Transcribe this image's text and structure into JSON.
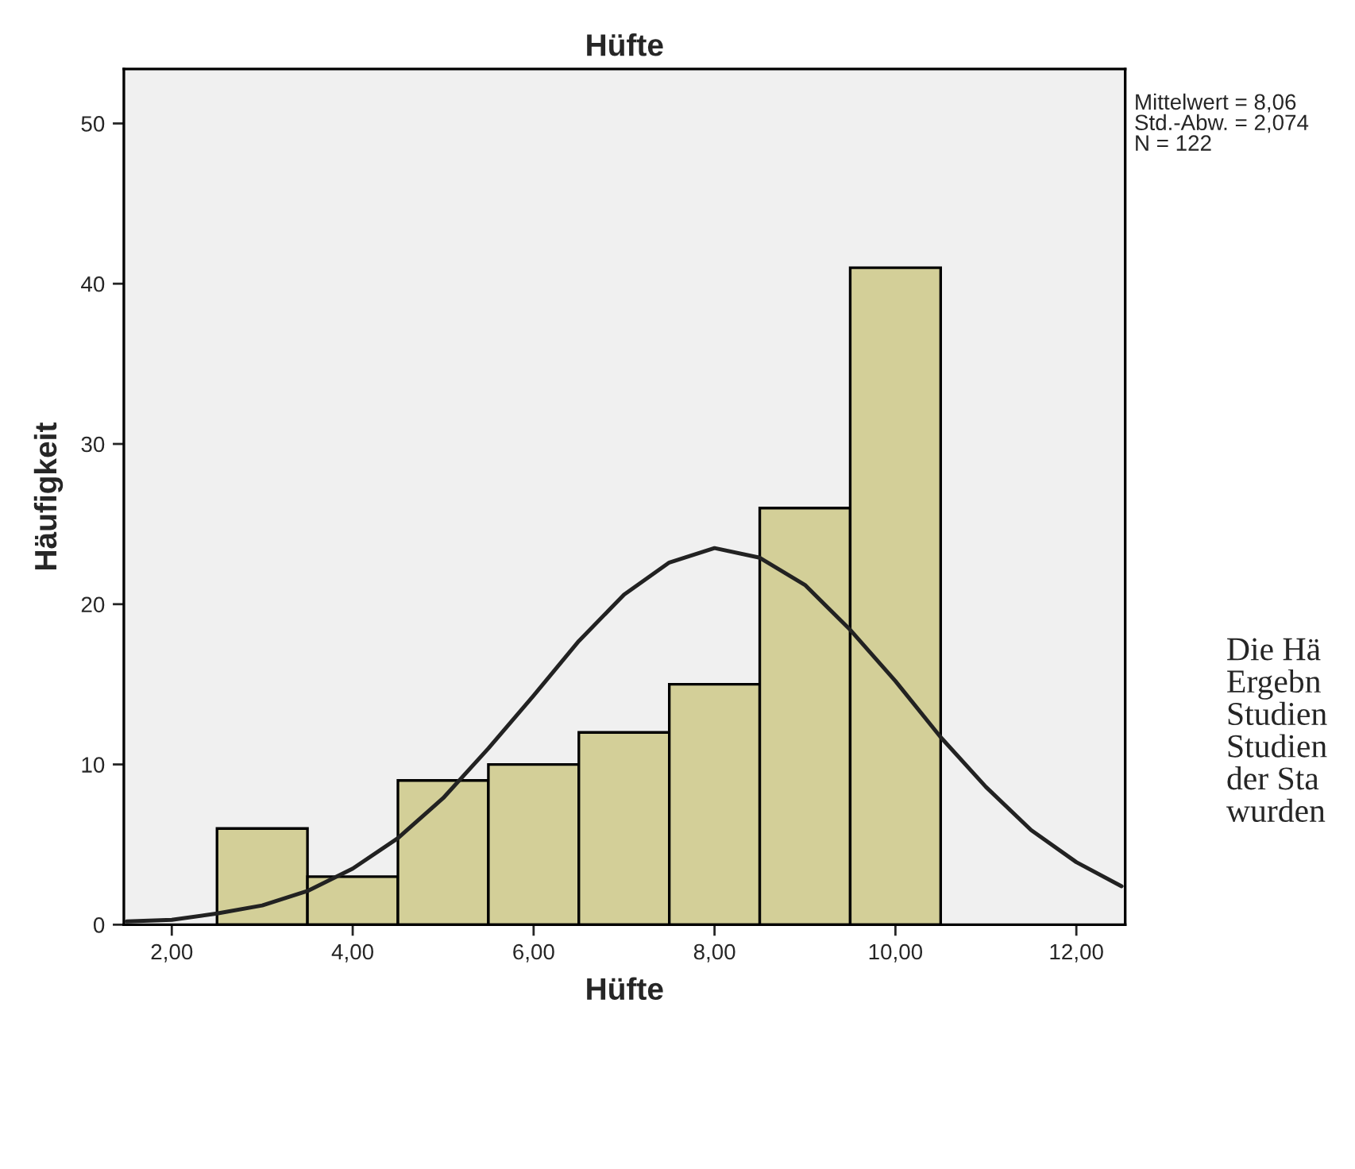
{
  "chart_data": {
    "type": "histogram",
    "title": "Hüfte",
    "xlabel": "Hüfte",
    "ylabel": "Häufigkeit",
    "series": [
      {
        "color": "#d3cf98",
        "bins": [
          2.5,
          3.5,
          4.5,
          5.5,
          6.5,
          7.5,
          8.5,
          9.5,
          10.5
        ],
        "values": [
          6,
          3,
          9,
          10,
          12,
          15,
          26,
          41
        ]
      },
      {
        "type": "line",
        "color": "#222222",
        "x": [
          1.5,
          2.0,
          2.5,
          3.0,
          3.5,
          4.0,
          4.5,
          5.0,
          5.5,
          6.0,
          6.5,
          7.0,
          7.5,
          8.0,
          8.5,
          9.0,
          9.5,
          10.0,
          10.5,
          11.0,
          11.5,
          12.0,
          12.5
        ],
        "values": [
          0.2,
          0.3,
          0.7,
          1.2,
          2.1,
          3.5,
          5.4,
          7.9,
          11.0,
          14.3,
          17.7,
          20.6,
          22.6,
          23.5,
          22.9,
          21.2,
          18.4,
          15.2,
          11.7,
          8.6,
          5.9,
          3.9,
          2.4
        ]
      }
    ],
    "xlim": [
      1.47,
      12.54
    ],
    "ylim": [
      0,
      53.4
    ],
    "xticks": [
      {
        "value": 2,
        "label": "2,00"
      },
      {
        "value": 4,
        "label": "4,00"
      },
      {
        "value": 6,
        "label": "6,00"
      },
      {
        "value": 8,
        "label": "8,00"
      },
      {
        "value": 10,
        "label": "10,00"
      },
      {
        "value": 12,
        "label": "12,00"
      }
    ],
    "yticks": [
      0,
      10,
      20,
      30,
      40,
      50
    ],
    "grid": false,
    "legend": false,
    "annotations": [
      "Mittelwert = 8,06\nStd.-Abw. = 2,074\nN = 122",
      "Die Hä\nErgebn\nStudien\nStudien\nder Sta\nwurden"
    ]
  }
}
